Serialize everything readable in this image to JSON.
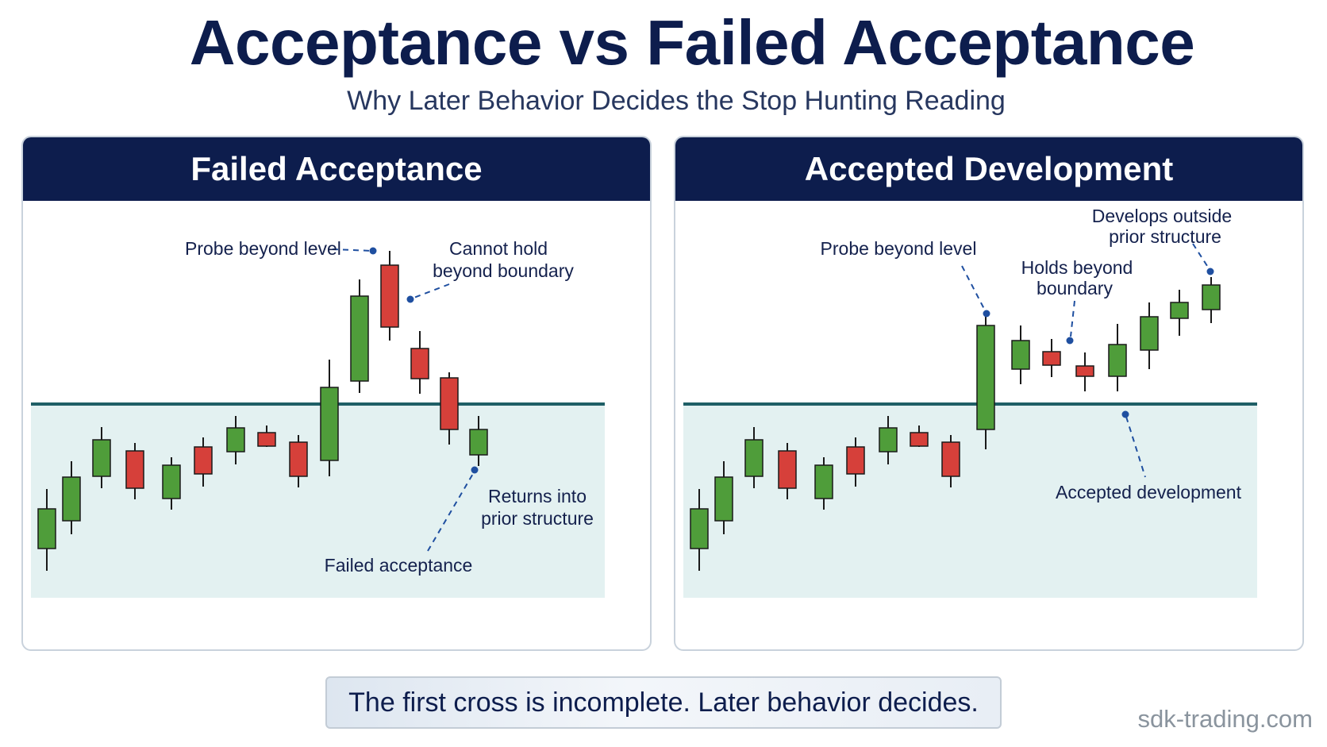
{
  "title": "Acceptance vs Failed Acceptance",
  "subtitle": "Why Later Behavior Decides the Stop Hunting Reading",
  "colors": {
    "navy": "#0d1d4d",
    "bull": "#4f9d3a",
    "bear": "#d6403a",
    "level_line": "#1f5f66",
    "zone_fill": "#e3f1f1",
    "callout_dot": "#1f4fa0"
  },
  "panels": [
    {
      "id": "failed",
      "title": "Failed Acceptance",
      "labels": {
        "probe": "Probe beyond level",
        "cannot_hold_1": "Cannot hold",
        "cannot_hold_2": "beyond boundary",
        "returns_1": "Returns into",
        "returns_2": "prior structure",
        "failed": "Failed acceptance"
      }
    },
    {
      "id": "accepted",
      "title": "Accepted Development",
      "labels": {
        "probe": "Probe beyond level",
        "holds_1": "Holds beyond",
        "holds_2": "boundary",
        "develops_1": "Develops outside",
        "develops_2": "prior structure",
        "accepted": "Accepted development"
      }
    }
  ],
  "footer": "The first cross is incomplete. Later behavior decides.",
  "watermark": "sdk-trading.com"
}
